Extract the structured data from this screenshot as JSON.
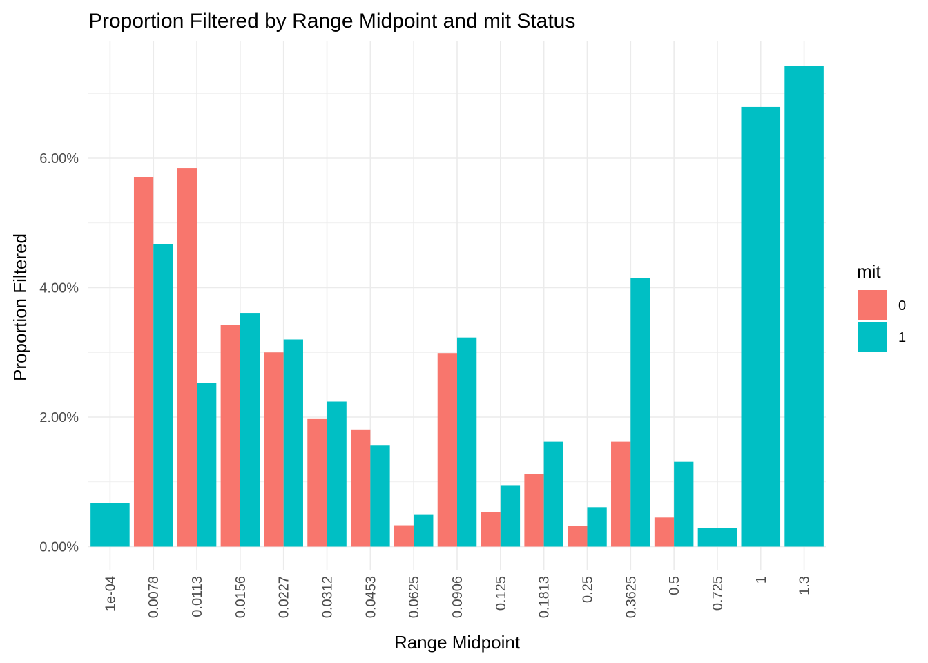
{
  "chart_data": {
    "type": "bar",
    "title": "Proportion Filtered by Range Midpoint and mit Status",
    "xlabel": "Range Midpoint",
    "ylabel": "Proportion Filtered",
    "categories": [
      "1e-04",
      "0.0078",
      "0.0113",
      "0.0156",
      "0.0227",
      "0.0312",
      "0.0453",
      "0.0625",
      "0.0906",
      "0.125",
      "0.1813",
      "0.25",
      "0.3625",
      "0.5",
      "0.725",
      "1",
      "1.3"
    ],
    "series": [
      {
        "name": "0",
        "color": "#F8766D",
        "values": [
          null,
          5.71,
          5.85,
          3.42,
          3.0,
          1.98,
          1.81,
          0.33,
          2.99,
          0.53,
          1.12,
          0.32,
          1.62,
          0.45,
          null,
          null,
          null
        ]
      },
      {
        "name": "1",
        "color": "#00BFC4",
        "values": [
          0.67,
          4.67,
          2.53,
          3.61,
          3.2,
          2.24,
          1.56,
          0.5,
          3.23,
          0.95,
          1.62,
          0.61,
          4.15,
          1.31,
          0.29,
          6.79,
          7.42
        ]
      }
    ],
    "ylim": [
      -0.3,
      7.65
    ],
    "yticks": [
      0,
      2,
      4,
      6
    ],
    "ytick_labels": [
      "0.00%",
      "2.00%",
      "4.00%",
      "6.00%"
    ],
    "grid": true,
    "legend": {
      "title": "mit",
      "position": "right",
      "labels": [
        "0",
        "1"
      ]
    }
  }
}
